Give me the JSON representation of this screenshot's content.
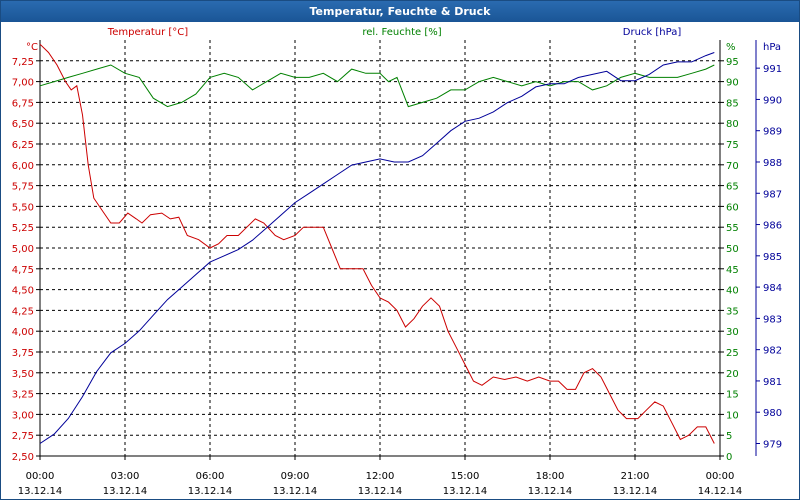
{
  "window": {
    "title": "Temperatur, Feuchte & Druck"
  },
  "chart_data": {
    "type": "line",
    "title": "Temperatur, Feuchte & Druck",
    "x_ticks": [
      {
        "hour": 0,
        "time": "00:00",
        "date": "13.12.14"
      },
      {
        "hour": 3,
        "time": "03:00",
        "date": "13.12.14"
      },
      {
        "hour": 6,
        "time": "06:00",
        "date": "13.12.14"
      },
      {
        "hour": 9,
        "time": "09:00",
        "date": "13.12.14"
      },
      {
        "hour": 12,
        "time": "12:00",
        "date": "13.12.14"
      },
      {
        "hour": 15,
        "time": "15:00",
        "date": "13.12.14"
      },
      {
        "hour": 18,
        "time": "18:00",
        "date": "13.12.14"
      },
      {
        "hour": 21,
        "time": "21:00",
        "date": "13.12.14"
      },
      {
        "hour": 24,
        "time": "00:00",
        "date": "14.12.14"
      }
    ],
    "xlim": [
      0,
      24
    ],
    "axes": {
      "temperature": {
        "label": "Temperatur [°C]",
        "unit": "°C",
        "color": "#cc0000",
        "ylim": [
          2.5,
          7.5
        ],
        "ticks": [
          "2,50",
          "2,75",
          "3,00",
          "3,25",
          "3,50",
          "3,75",
          "4,00",
          "4,25",
          "4,50",
          "4,75",
          "5,00",
          "5,25",
          "5,50",
          "5,75",
          "6,00",
          "6,25",
          "6,50",
          "6,75",
          "7,00",
          "7,25"
        ]
      },
      "humidity": {
        "label": "rel. Feuchte [%]",
        "unit": "%",
        "color": "#008000",
        "ylim": [
          0,
          100
        ],
        "ticks": [
          "0",
          "5",
          "10",
          "15",
          "20",
          "25",
          "30",
          "35",
          "40",
          "45",
          "50",
          "55",
          "60",
          "65",
          "70",
          "75",
          "80",
          "85",
          "90",
          "95"
        ]
      },
      "pressure": {
        "label": "Druck [hPa]",
        "unit": "hPa",
        "color": "#000099",
        "ylim": [
          978.6,
          991.9
        ],
        "ticks": [
          "979",
          "980",
          "981",
          "982",
          "983",
          "984",
          "985",
          "986",
          "987",
          "988",
          "989",
          "990",
          "991"
        ]
      }
    },
    "series": [
      {
        "name": "Temperatur [°C]",
        "axis": "temperature",
        "points": [
          [
            0,
            7.45
          ],
          [
            0.3,
            7.35
          ],
          [
            0.6,
            7.2
          ],
          [
            0.9,
            7.0
          ],
          [
            1.1,
            6.9
          ],
          [
            1.3,
            6.95
          ],
          [
            1.5,
            6.6
          ],
          [
            1.7,
            6.0
          ],
          [
            1.9,
            5.6
          ],
          [
            2.2,
            5.45
          ],
          [
            2.5,
            5.3
          ],
          [
            2.8,
            5.3
          ],
          [
            3.1,
            5.42
          ],
          [
            3.4,
            5.35
          ],
          [
            3.6,
            5.3
          ],
          [
            3.9,
            5.4
          ],
          [
            4.3,
            5.42
          ],
          [
            4.6,
            5.35
          ],
          [
            4.9,
            5.37
          ],
          [
            5.2,
            5.15
          ],
          [
            5.6,
            5.1
          ],
          [
            6.0,
            5.0
          ],
          [
            6.3,
            5.05
          ],
          [
            6.6,
            5.15
          ],
          [
            7.0,
            5.15
          ],
          [
            7.3,
            5.25
          ],
          [
            7.6,
            5.35
          ],
          [
            7.9,
            5.3
          ],
          [
            8.3,
            5.15
          ],
          [
            8.6,
            5.1
          ],
          [
            9.0,
            5.15
          ],
          [
            9.3,
            5.25
          ],
          [
            9.7,
            5.25
          ],
          [
            10.0,
            5.25
          ],
          [
            10.3,
            5.0
          ],
          [
            10.6,
            4.75
          ],
          [
            11.0,
            4.75
          ],
          [
            11.4,
            4.75
          ],
          [
            11.7,
            4.55
          ],
          [
            12.0,
            4.4
          ],
          [
            12.3,
            4.35
          ],
          [
            12.6,
            4.25
          ],
          [
            12.9,
            4.05
          ],
          [
            13.2,
            4.15
          ],
          [
            13.5,
            4.3
          ],
          [
            13.8,
            4.4
          ],
          [
            14.1,
            4.3
          ],
          [
            14.4,
            4.0
          ],
          [
            14.7,
            3.8
          ],
          [
            15.0,
            3.6
          ],
          [
            15.3,
            3.4
          ],
          [
            15.6,
            3.35
          ],
          [
            16.0,
            3.45
          ],
          [
            16.4,
            3.42
          ],
          [
            16.8,
            3.45
          ],
          [
            17.2,
            3.4
          ],
          [
            17.6,
            3.45
          ],
          [
            18.0,
            3.4
          ],
          [
            18.3,
            3.4
          ],
          [
            18.6,
            3.3
          ],
          [
            18.9,
            3.3
          ],
          [
            19.2,
            3.5
          ],
          [
            19.5,
            3.55
          ],
          [
            19.8,
            3.45
          ],
          [
            20.1,
            3.25
          ],
          [
            20.4,
            3.05
          ],
          [
            20.7,
            2.95
          ],
          [
            21.1,
            2.95
          ],
          [
            21.4,
            3.05
          ],
          [
            21.7,
            3.15
          ],
          [
            22.0,
            3.1
          ],
          [
            22.3,
            2.9
          ],
          [
            22.6,
            2.7
          ],
          [
            22.9,
            2.75
          ],
          [
            23.2,
            2.85
          ],
          [
            23.5,
            2.85
          ],
          [
            23.8,
            2.65
          ]
        ]
      },
      {
        "name": "rel. Feuchte [%]",
        "axis": "humidity",
        "points": [
          [
            0,
            89
          ],
          [
            0.5,
            90
          ],
          [
            1.0,
            91
          ],
          [
            1.5,
            92
          ],
          [
            2.0,
            93
          ],
          [
            2.5,
            94
          ],
          [
            3.0,
            92
          ],
          [
            3.5,
            91
          ],
          [
            4.0,
            86
          ],
          [
            4.5,
            84
          ],
          [
            5.0,
            85
          ],
          [
            5.5,
            87
          ],
          [
            6.0,
            91
          ],
          [
            6.5,
            92
          ],
          [
            7.0,
            91
          ],
          [
            7.5,
            88
          ],
          [
            8.0,
            90
          ],
          [
            8.5,
            92
          ],
          [
            9.0,
            91
          ],
          [
            9.5,
            91
          ],
          [
            10.0,
            92
          ],
          [
            10.5,
            90
          ],
          [
            11.0,
            93
          ],
          [
            11.5,
            92
          ],
          [
            12.0,
            92
          ],
          [
            12.3,
            90
          ],
          [
            12.6,
            91
          ],
          [
            13.0,
            84
          ],
          [
            13.5,
            85
          ],
          [
            14.0,
            86
          ],
          [
            14.5,
            88
          ],
          [
            15.0,
            88
          ],
          [
            15.5,
            90
          ],
          [
            16.0,
            91
          ],
          [
            16.5,
            90
          ],
          [
            17.0,
            89
          ],
          [
            17.5,
            90
          ],
          [
            18.0,
            89
          ],
          [
            18.5,
            90
          ],
          [
            19.0,
            90
          ],
          [
            19.5,
            88
          ],
          [
            20.0,
            89
          ],
          [
            20.5,
            91
          ],
          [
            21.0,
            92
          ],
          [
            21.5,
            91
          ],
          [
            22.0,
            91
          ],
          [
            22.5,
            91
          ],
          [
            23.0,
            92
          ],
          [
            23.5,
            93
          ],
          [
            23.8,
            94
          ]
        ]
      },
      {
        "name": "Druck [hPa]",
        "axis": "pressure",
        "points": [
          [
            0,
            979.0
          ],
          [
            0.5,
            979.3
          ],
          [
            1.0,
            979.8
          ],
          [
            1.5,
            980.5
          ],
          [
            2.0,
            981.3
          ],
          [
            2.5,
            981.9
          ],
          [
            3.0,
            982.2
          ],
          [
            3.5,
            982.6
          ],
          [
            4.0,
            983.1
          ],
          [
            4.5,
            983.6
          ],
          [
            5.0,
            984.0
          ],
          [
            5.5,
            984.4
          ],
          [
            6.0,
            984.8
          ],
          [
            6.5,
            985.0
          ],
          [
            7.0,
            985.2
          ],
          [
            7.5,
            985.5
          ],
          [
            8.0,
            985.9
          ],
          [
            8.5,
            986.3
          ],
          [
            9.0,
            986.7
          ],
          [
            9.5,
            987.0
          ],
          [
            10.0,
            987.3
          ],
          [
            10.5,
            987.6
          ],
          [
            11.0,
            987.9
          ],
          [
            11.5,
            988.0
          ],
          [
            12.0,
            988.1
          ],
          [
            12.5,
            988.0
          ],
          [
            13.0,
            988.0
          ],
          [
            13.5,
            988.2
          ],
          [
            14.0,
            988.6
          ],
          [
            14.5,
            989.0
          ],
          [
            15.0,
            989.3
          ],
          [
            15.5,
            989.4
          ],
          [
            16.0,
            989.6
          ],
          [
            16.5,
            989.9
          ],
          [
            17.0,
            990.1
          ],
          [
            17.5,
            990.4
          ],
          [
            18.0,
            990.5
          ],
          [
            18.5,
            990.5
          ],
          [
            19.0,
            990.7
          ],
          [
            19.5,
            990.8
          ],
          [
            20.0,
            990.9
          ],
          [
            20.5,
            990.6
          ],
          [
            21.0,
            990.6
          ],
          [
            21.5,
            990.8
          ],
          [
            22.0,
            991.1
          ],
          [
            22.5,
            991.2
          ],
          [
            23.0,
            991.2
          ],
          [
            23.5,
            991.4
          ],
          [
            23.8,
            991.5
          ]
        ]
      }
    ]
  }
}
